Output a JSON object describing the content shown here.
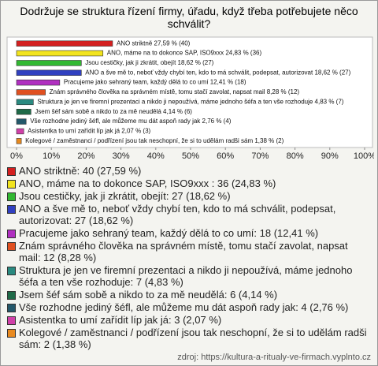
{
  "chart_data": {
    "type": "bar",
    "title": "Dodržuje se struktura řízení firmy, úřadu, když třeba potřebujete něco schválit?",
    "values": [
      27.59,
      24.83,
      18.62,
      18.62,
      12.41,
      8.28,
      4.83,
      4.14,
      2.76,
      2.07,
      1.38
    ],
    "value_labels": [
      "ANO striktně 27,59 % (40)",
      "ANO, máme na to dokonce SAP, ISO9xxx  24,83 % (36)",
      "Jsou cestičky, jak ji zkrátit, obejít 18,62 % (27)",
      "ANO a šve mě to, neboť vždy chybí ten, kdo to má schválit, podepsat, autorizovat 18,62 % (27)",
      "Pracujeme jako sehraný team, každý dělá to co umí 12,41 % (18)",
      "Znám správného člověka na správném místě, tomu stačí zavolat, napsat mail 8,28 % (12)",
      "Struktura je jen ve firemní prezentaci a nikdo ji nepoužívá, máme jednoho šéfa a ten vše rozhoduje 4,83 % (7)",
      "Jsem šéf sám sobě a nikdo to za mě neudělá 4,14 % (6)",
      "Vše rozhodne jediný šéfl, ale můžeme mu dát aspoň rady jak 2,76 % (4)",
      "Asistentka to umí zařídit líp jak já 2,07 % (3)",
      "Kolegové / zaměstnanci / podřízení jsou tak neschopní, že si to udělám radši sám 1,38 % (2)"
    ],
    "legend": [
      "ANO striktně: 40 (27,59 %)",
      "ANO, máme na to dokonce SAP, ISO9xxx : 36 (24,83 %)",
      "Jsou cestičky, jak ji zkrátit, obejít: 27 (18,62 %)",
      "ANO a šve mě to, neboť vždy chybí ten, kdo to má schválit, podepsat, autorizovat: 27 (18,62 %)",
      "Pracujeme jako sehraný team, každý dělá to co umí: 18 (12,41 %)",
      "Znám správného člověka na správném místě, tomu stačí zavolat, napsat mail: 12 (8,28 %)",
      "Struktura je jen ve firemní prezentaci a nikdo ji nepoužívá, máme jednoho šéfa a ten vše rozhoduje: 7 (4,83 %)",
      "Jsem šéf sám sobě a nikdo to za mě neudělá: 6 (4,14 %)",
      "Vše rozhodne jediný šéfl, ale můžeme mu dát aspoň rady jak: 4 (2,76 %)",
      "Asistentka to umí zařídit líp jak já: 3 (2,07 %)",
      "Kolegové / zaměstnanci / podřízení jsou tak neschopní, že si to udělám radši sám: 2 (1,38 %)"
    ],
    "colors": [
      "#d42020",
      "#f2e41e",
      "#32b832",
      "#3040c0",
      "#b030c0",
      "#e05020",
      "#2a8a80",
      "#1f6a48",
      "#24586a",
      "#d040a8",
      "#e88a20"
    ],
    "xlim": [
      0,
      100
    ],
    "xticks": [
      {
        "value": 0,
        "label": "0%"
      },
      {
        "value": 10,
        "label": "10%"
      },
      {
        "value": 20,
        "label": "20%"
      },
      {
        "value": 30,
        "label": "30%"
      },
      {
        "value": 40,
        "label": "40%"
      },
      {
        "value": 50,
        "label": "50%"
      },
      {
        "value": 60,
        "label": "60%"
      },
      {
        "value": 70,
        "label": "70%"
      },
      {
        "value": 80,
        "label": "80%"
      },
      {
        "value": 90,
        "label": "90%"
      },
      {
        "value": 100,
        "label": "100%"
      }
    ],
    "source": "zdroj: https://kultura-a-ritualy-ve-firmach.vyplnto.cz"
  }
}
